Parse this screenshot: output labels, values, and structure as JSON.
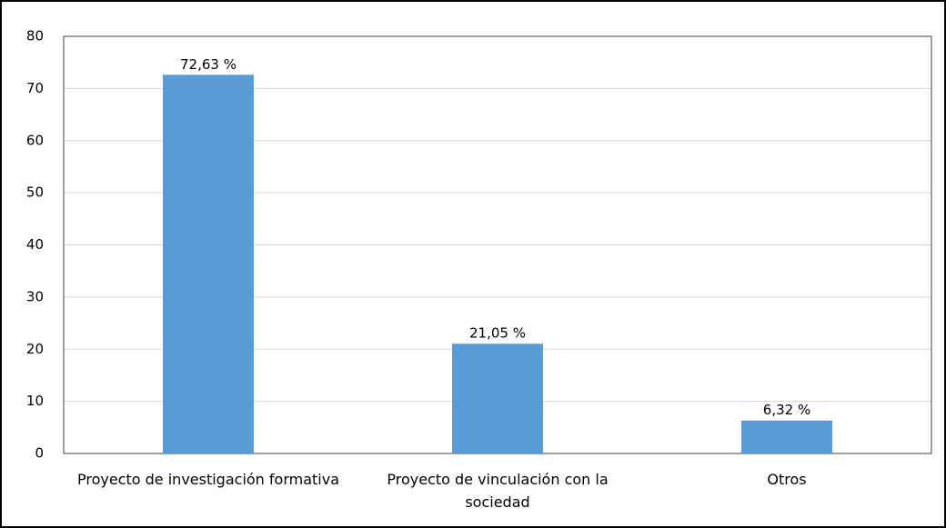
{
  "chart_data": {
    "type": "bar",
    "categories": [
      "Proyecto de investigación formativa",
      "Proyecto de vinculación con la sociedad",
      "Otros"
    ],
    "values": [
      72.63,
      21.05,
      6.32
    ],
    "value_labels": [
      "72,63 %",
      "21,05 %",
      "6,32 %"
    ],
    "color": "#5b9bd5",
    "ylim": [
      0,
      80
    ],
    "yticks": [
      0,
      10,
      20,
      30,
      40,
      50,
      60,
      70,
      80
    ],
    "grid": true
  }
}
